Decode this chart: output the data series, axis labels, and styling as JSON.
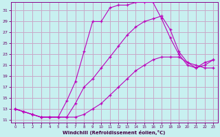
{
  "xlabel": "Windchill (Refroidissement éolien,°C)",
  "bg_color": "#c8f0f0",
  "grid_color": "#c8a8c8",
  "line_color": "#bb00bb",
  "xlim": [
    -0.5,
    23.5
  ],
  "ylim": [
    10.5,
    32.5
  ],
  "xticks": [
    0,
    1,
    2,
    3,
    4,
    5,
    6,
    7,
    8,
    9,
    10,
    11,
    12,
    13,
    14,
    15,
    16,
    17,
    18,
    19,
    20,
    21,
    22,
    23
  ],
  "yticks": [
    11,
    13,
    15,
    17,
    19,
    21,
    23,
    25,
    27,
    29,
    31
  ],
  "curve1_x": [
    0,
    1,
    2,
    3,
    4,
    5,
    6,
    7,
    8,
    9,
    10,
    11,
    12,
    13,
    14,
    15,
    16,
    17,
    18,
    19,
    20,
    21,
    22,
    23
  ],
  "curve1_y": [
    13.0,
    12.5,
    12.0,
    11.5,
    11.5,
    11.5,
    14.5,
    18.0,
    23.5,
    29.0,
    29.0,
    31.5,
    32.0,
    32.0,
    32.5,
    32.5,
    32.5,
    29.5,
    26.0,
    23.0,
    21.0,
    20.5,
    21.5,
    22.0
  ],
  "curve2_x": [
    0,
    1,
    2,
    3,
    4,
    5,
    6,
    7,
    8,
    9,
    10,
    11,
    12,
    13,
    14,
    15,
    16,
    17,
    18,
    19,
    20,
    21,
    22,
    23
  ],
  "curve2_y": [
    13.0,
    12.5,
    12.0,
    11.5,
    11.5,
    11.5,
    11.5,
    14.0,
    17.0,
    18.5,
    20.5,
    22.5,
    24.5,
    26.5,
    28.0,
    29.0,
    29.5,
    30.0,
    27.5,
    23.5,
    21.5,
    20.5,
    21.0,
    22.0
  ],
  "curve3_x": [
    0,
    1,
    2,
    3,
    4,
    5,
    6,
    7,
    8,
    9,
    10,
    11,
    12,
    13,
    14,
    15,
    16,
    17,
    18,
    19,
    20,
    21,
    22,
    23
  ],
  "curve3_y": [
    13.0,
    12.5,
    12.0,
    11.5,
    11.5,
    11.5,
    11.5,
    11.5,
    12.0,
    13.0,
    14.0,
    15.5,
    17.0,
    18.5,
    20.0,
    21.0,
    22.0,
    22.5,
    22.5,
    22.5,
    21.5,
    21.0,
    20.5,
    20.5
  ]
}
